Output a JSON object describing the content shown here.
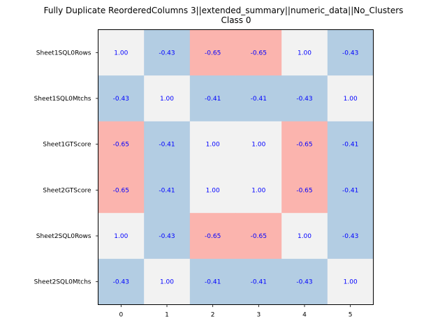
{
  "chart_data": {
    "type": "heatmap",
    "title": "Fully Duplicate ReorderedColumns 3||extended_summary||numeric_data||No_Clusters",
    "subtitle": "Class 0",
    "row_labels": [
      "Sheet1SQL0Rows",
      "Sheet1SQL0Mtchs",
      "Sheet1GTScore",
      "Sheet2GTScore",
      "Sheet2SQL0Rows",
      "Sheet2SQL0Mtchs"
    ],
    "col_labels": [
      "0",
      "1",
      "2",
      "3",
      "4",
      "5"
    ],
    "values": [
      [
        1.0,
        -0.43,
        -0.65,
        -0.65,
        1.0,
        -0.43
      ],
      [
        -0.43,
        1.0,
        -0.41,
        -0.41,
        -0.43,
        1.0
      ],
      [
        -0.65,
        -0.41,
        1.0,
        1.0,
        -0.65,
        -0.41
      ],
      [
        -0.65,
        -0.41,
        1.0,
        1.0,
        -0.65,
        -0.41
      ],
      [
        1.0,
        -0.43,
        -0.65,
        -0.65,
        1.0,
        -0.43
      ],
      [
        -0.43,
        1.0,
        -0.41,
        -0.41,
        -0.43,
        1.0
      ]
    ],
    "value_labels": [
      [
        "1.00",
        "-0.43",
        "-0.65",
        "-0.65",
        "1.00",
        "-0.43"
      ],
      [
        "-0.43",
        "1.00",
        "-0.41",
        "-0.41",
        "-0.43",
        "1.00"
      ],
      [
        "-0.65",
        "-0.41",
        "1.00",
        "1.00",
        "-0.65",
        "-0.41"
      ],
      [
        "-0.65",
        "-0.41",
        "1.00",
        "1.00",
        "-0.65",
        "-0.41"
      ],
      [
        "1.00",
        "-0.43",
        "-0.65",
        "-0.65",
        "1.00",
        "-0.43"
      ],
      [
        "-0.43",
        "1.00",
        "-0.41",
        "-0.41",
        "-0.43",
        "1.00"
      ]
    ],
    "colors": {
      "high": "#f2f2f2",
      "mid": "#b3cde3",
      "low": "#fbb4ae",
      "value_text": "#0000ff"
    },
    "grid": false
  }
}
